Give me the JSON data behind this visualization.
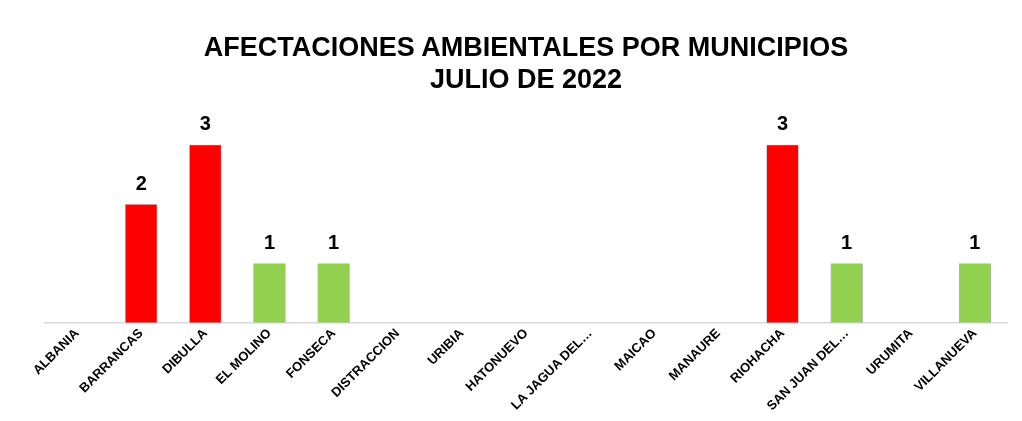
{
  "chart_data": {
    "type": "bar",
    "title": [
      "AFECTACIONES AMBIENTALES POR MUNICIPIOS",
      "JULIO DE 2022"
    ],
    "categories": [
      "ALBANIA",
      "BARRANCAS",
      "DIBULLA",
      "EL MOLINO",
      "FONSECA",
      "DISTRACCION",
      "URIBIA",
      "HATONUEVO",
      "LA JAGUA DEL…",
      "MAICAO",
      "MANAURE",
      "RIOHACHA",
      "SAN JUAN DEL…",
      "URUMITA",
      "VILLANUEVA"
    ],
    "values": [
      0,
      2,
      3,
      1,
      1,
      0,
      0,
      0,
      0,
      0,
      0,
      3,
      1,
      0,
      1
    ],
    "value_labels": [
      null,
      "2",
      "3",
      "1",
      "1",
      null,
      null,
      null,
      null,
      null,
      null,
      "3",
      "1",
      null,
      "1"
    ],
    "colors": [
      "#ff0000",
      "#ff0000",
      "#ff0000",
      "#92d050",
      "#92d050",
      "#ff0000",
      "#ff0000",
      "#ff0000",
      "#ff0000",
      "#ff0000",
      "#ff0000",
      "#ff0000",
      "#92d050",
      "#ff0000",
      "#92d050"
    ],
    "tick_labels": "x",
    "grid": false,
    "legend": false
  }
}
